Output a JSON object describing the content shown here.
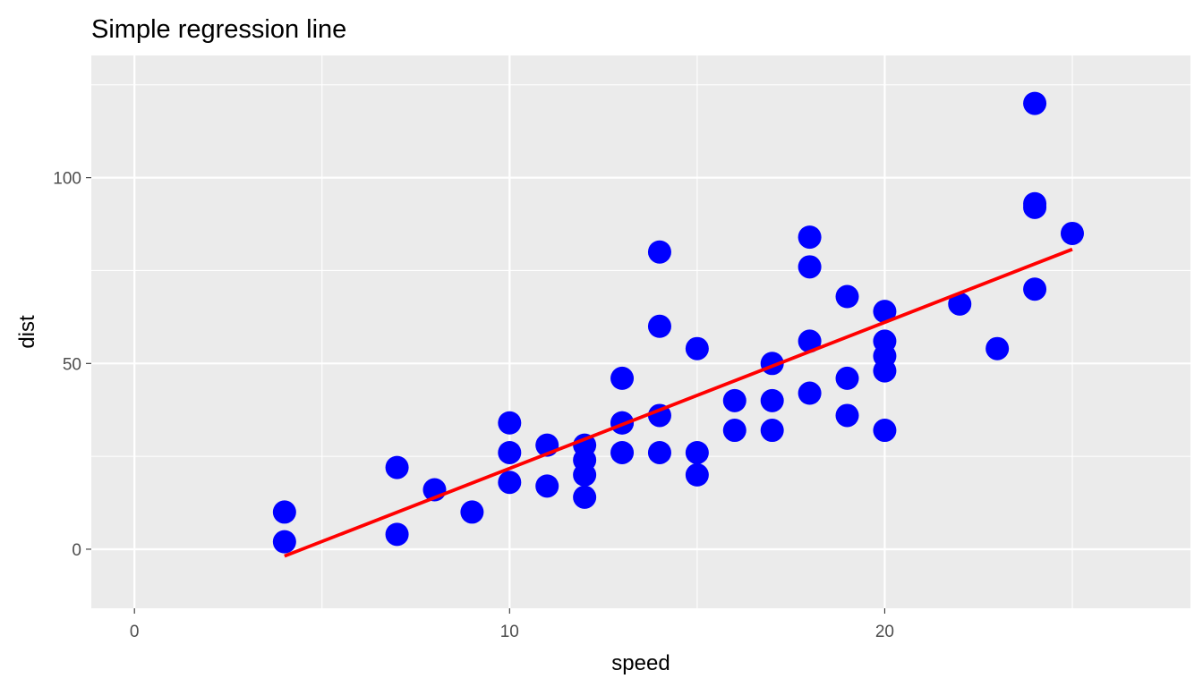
{
  "chart_data": {
    "type": "scatter",
    "title": "Simple regression line",
    "xlabel": "speed",
    "ylabel": "dist",
    "xlim": [
      -1.15,
      28.15
    ],
    "ylim": [
      -15.9,
      132.9
    ],
    "x_ticks": [
      0,
      10,
      20
    ],
    "x_tick_labels": [
      "0",
      "10",
      "20"
    ],
    "x_minor_ticks": [
      5,
      15,
      25
    ],
    "y_ticks": [
      0,
      50,
      100
    ],
    "y_tick_labels": [
      "0",
      "50",
      "100"
    ],
    "y_minor_ticks": [
      25,
      75,
      125
    ],
    "grid": true,
    "legend": "none",
    "points": {
      "color": "#0000ff",
      "x": [
        4,
        4,
        7,
        7,
        8,
        9,
        10,
        10,
        10,
        11,
        11,
        12,
        12,
        12,
        12,
        13,
        13,
        13,
        13,
        14,
        14,
        14,
        14,
        15,
        15,
        15,
        16,
        16,
        17,
        17,
        17,
        18,
        18,
        18,
        18,
        19,
        19,
        19,
        20,
        20,
        20,
        20,
        20,
        22,
        23,
        24,
        24,
        24,
        24,
        25
      ],
      "y": [
        2,
        10,
        4,
        22,
        16,
        10,
        18,
        26,
        34,
        17,
        28,
        14,
        20,
        24,
        28,
        26,
        34,
        34,
        46,
        26,
        36,
        60,
        80,
        20,
        26,
        54,
        32,
        40,
        32,
        40,
        50,
        42,
        56,
        76,
        84,
        36,
        46,
        68,
        32,
        48,
        52,
        56,
        64,
        66,
        54,
        70,
        92,
        93,
        120,
        85
      ]
    },
    "regression_line": {
      "color": "#ff0000",
      "x": [
        4,
        25
      ],
      "y": [
        -1.85,
        80.73
      ]
    },
    "panel_background": "#ebebeb",
    "grid_color": "#ffffff"
  }
}
